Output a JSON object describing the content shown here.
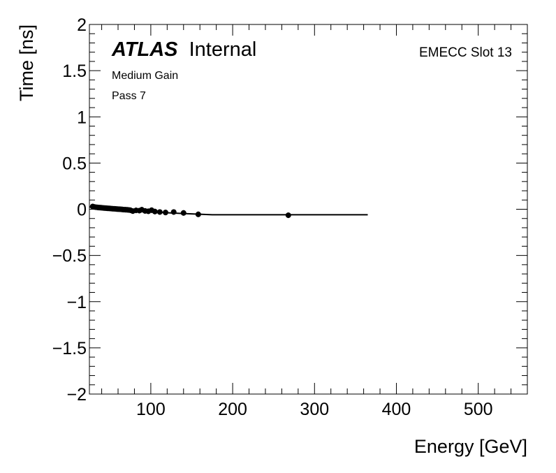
{
  "chart_data": {
    "type": "scatter",
    "xlabel": "Energy [GeV]",
    "ylabel": "Time [ns]",
    "xlim": [
      25,
      560
    ],
    "ylim": [
      -2,
      2
    ],
    "xticks": [
      100,
      200,
      300,
      400,
      500
    ],
    "yticks": [
      -2,
      -1.5,
      -1,
      -0.5,
      0,
      0.5,
      1,
      1.5,
      2
    ],
    "ytick_labels": [
      "−2",
      "−1.5",
      "−1",
      "−0.5",
      "0",
      "0.5",
      "1",
      "1.5",
      "2"
    ],
    "grid": false,
    "annotations": {
      "experiment": "ATLAS",
      "status": "Internal",
      "gain": "Medium Gain",
      "pass": "Pass 7",
      "slot": "EMECC Slot 13"
    },
    "points": [
      {
        "x": 29,
        "y": 0.03
      },
      {
        "x": 31,
        "y": 0.025
      },
      {
        "x": 33,
        "y": 0.022
      },
      {
        "x": 35,
        "y": 0.02
      },
      {
        "x": 37,
        "y": 0.018
      },
      {
        "x": 39,
        "y": 0.017
      },
      {
        "x": 41,
        "y": 0.015
      },
      {
        "x": 43,
        "y": 0.013
      },
      {
        "x": 45,
        "y": 0.012
      },
      {
        "x": 47,
        "y": 0.01
      },
      {
        "x": 49,
        "y": 0.009
      },
      {
        "x": 51,
        "y": 0.008
      },
      {
        "x": 53,
        "y": 0.006
      },
      {
        "x": 55,
        "y": 0.005
      },
      {
        "x": 57,
        "y": 0.004
      },
      {
        "x": 59,
        "y": 0.002
      },
      {
        "x": 61,
        "y": 0.001
      },
      {
        "x": 63,
        "y": 0.0
      },
      {
        "x": 65,
        "y": -0.002
      },
      {
        "x": 67,
        "y": -0.004
      },
      {
        "x": 69,
        "y": -0.005
      },
      {
        "x": 71,
        "y": -0.006
      },
      {
        "x": 73,
        "y": -0.008
      },
      {
        "x": 75,
        "y": -0.01
      },
      {
        "x": 78,
        "y": -0.02
      },
      {
        "x": 82,
        "y": -0.012
      },
      {
        "x": 86,
        "y": -0.015
      },
      {
        "x": 89,
        "y": -0.005
      },
      {
        "x": 93,
        "y": -0.018
      },
      {
        "x": 97,
        "y": -0.022
      },
      {
        "x": 101,
        "y": -0.01
      },
      {
        "x": 105,
        "y": -0.025
      },
      {
        "x": 111,
        "y": -0.03
      },
      {
        "x": 118,
        "y": -0.035
      },
      {
        "x": 128,
        "y": -0.03
      },
      {
        "x": 140,
        "y": -0.04
      },
      {
        "x": 158,
        "y": -0.055
      },
      {
        "x": 268,
        "y": -0.065
      }
    ],
    "fit_line": {
      "x": [
        25,
        40,
        60,
        80,
        100,
        130,
        175,
        365
      ],
      "y": [
        0.025,
        0.015,
        0.0,
        -0.015,
        -0.028,
        -0.042,
        -0.06,
        -0.06
      ]
    }
  }
}
